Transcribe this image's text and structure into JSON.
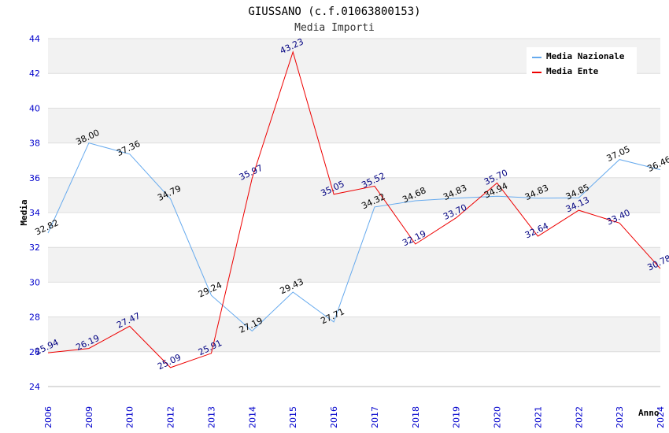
{
  "chart_data": {
    "type": "line",
    "title": "GIUSSANO (c.f.01063800153)",
    "subtitle": "Media Importi",
    "xlabel": "Anno",
    "ylabel": "Media",
    "ylim": [
      24,
      44
    ],
    "yticks": [
      "24",
      "26",
      "28",
      "30",
      "32",
      "34",
      "36",
      "38",
      "40",
      "42",
      "44"
    ],
    "categories": [
      "2006",
      "2009",
      "2010",
      "2012",
      "2013",
      "2014",
      "2015",
      "2016",
      "2017",
      "2018",
      "2019",
      "2020",
      "2021",
      "2022",
      "2023",
      "2024"
    ],
    "legend_position": "top-right",
    "series": [
      {
        "name": "Media Nazionale",
        "color": "#66aaee",
        "label_color": "#000000",
        "values": [
          32.82,
          38.0,
          37.36,
          34.79,
          29.24,
          27.19,
          29.43,
          27.71,
          34.32,
          34.68,
          34.83,
          34.94,
          34.83,
          34.85,
          37.05,
          36.46
        ],
        "labels": [
          "32.82",
          "38.00",
          "37.36",
          "34.79",
          "29.24",
          "27.19",
          "29.43",
          "27.71",
          "34.32",
          "34.68",
          "34.83",
          "34.94",
          "34.83",
          "34.85",
          "37.05",
          "36.46"
        ]
      },
      {
        "name": "Media Ente",
        "color": "#ee0000",
        "label_color": "#000080",
        "values": [
          25.94,
          26.19,
          27.47,
          25.09,
          25.91,
          35.97,
          43.23,
          35.05,
          35.52,
          32.19,
          33.7,
          35.7,
          32.64,
          34.13,
          33.4,
          30.78
        ],
        "labels": [
          "25.94",
          "26.19",
          "27.47",
          "25.09",
          "25.91",
          "35.97",
          "43.23",
          "35.05",
          "35.52",
          "32.19",
          "33.70",
          "35.70",
          "32.64",
          "34.13",
          "33.40",
          "30.78"
        ]
      }
    ]
  }
}
